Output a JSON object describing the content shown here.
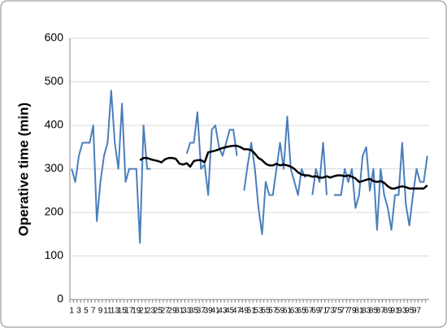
{
  "chart_data": {
    "type": "line",
    "y_label": "Operative time (min)",
    "categories": [
      1,
      null,
      3,
      null,
      5,
      null,
      7,
      null,
      9,
      null,
      11,
      null,
      13,
      null,
      15,
      null,
      17,
      null,
      19,
      null,
      21,
      null,
      23,
      null,
      25,
      null,
      27,
      null,
      29,
      null,
      31,
      null,
      33,
      null,
      35,
      null,
      37,
      null,
      39,
      null,
      41,
      null,
      43,
      null,
      45,
      null,
      47,
      null,
      49,
      null,
      51,
      null,
      53,
      null,
      55,
      null,
      57,
      null,
      59,
      null,
      61,
      null,
      63,
      null,
      65,
      null,
      67,
      null,
      69,
      null,
      71,
      null,
      73,
      null,
      75,
      null,
      77,
      null,
      79,
      null,
      81,
      null,
      83,
      null,
      85,
      null,
      87,
      null,
      89,
      null,
      91,
      null,
      93,
      null,
      95,
      null,
      97,
      null,
      null,
      null
    ],
    "series": [
      {
        "color": "#4a7ebb",
        "values": [
          300,
          270,
          330,
          360,
          360,
          360,
          400,
          180,
          270,
          330,
          360,
          480,
          360,
          300,
          450,
          270,
          300,
          300,
          300,
          130,
          400,
          300,
          300,
          null,
          null,
          null,
          null,
          null,
          null,
          null,
          null,
          null,
          335,
          360,
          360,
          430,
          300,
          310,
          240,
          390,
          400,
          350,
          330,
          360,
          390,
          390,
          330,
          null,
          250,
          310,
          360,
          300,
          210,
          150,
          270,
          240,
          240,
          300,
          360,
          300,
          420,
          300,
          270,
          240,
          300,
          280,
          null,
          240,
          300,
          270,
          360,
          240,
          null,
          240,
          240,
          240,
          300,
          270,
          300,
          210,
          240,
          330,
          350,
          250,
          300,
          160,
          300,
          240,
          210,
          160,
          240,
          240,
          360,
          220,
          170,
          240,
          300,
          270,
          270,
          330
        ]
      },
      {
        "color": "#000000",
        "values": [
          null,
          null,
          null,
          null,
          null,
          null,
          null,
          null,
          null,
          null,
          null,
          null,
          null,
          null,
          null,
          null,
          null,
          null,
          null,
          320,
          325,
          325,
          322,
          320,
          318,
          315,
          322,
          325,
          325,
          323,
          312,
          310,
          313,
          305,
          318,
          320,
          320,
          315,
          338,
          340,
          342,
          345,
          348,
          350,
          352,
          353,
          353,
          350,
          345,
          345,
          343,
          335,
          325,
          320,
          312,
          308,
          308,
          312,
          308,
          310,
          308,
          305,
          300,
          292,
          287,
          285,
          285,
          282,
          283,
          280,
          280,
          283,
          280,
          283,
          285,
          285,
          283,
          285,
          282,
          278,
          270,
          272,
          275,
          277,
          272,
          270,
          272,
          268,
          260,
          255,
          255,
          258,
          260,
          258,
          255,
          255,
          255,
          255,
          255,
          262
        ]
      }
    ],
    "ylim": [
      0,
      600
    ],
    "yticks": [
      0,
      100,
      200,
      300,
      400,
      500,
      600
    ],
    "grid": true
  }
}
